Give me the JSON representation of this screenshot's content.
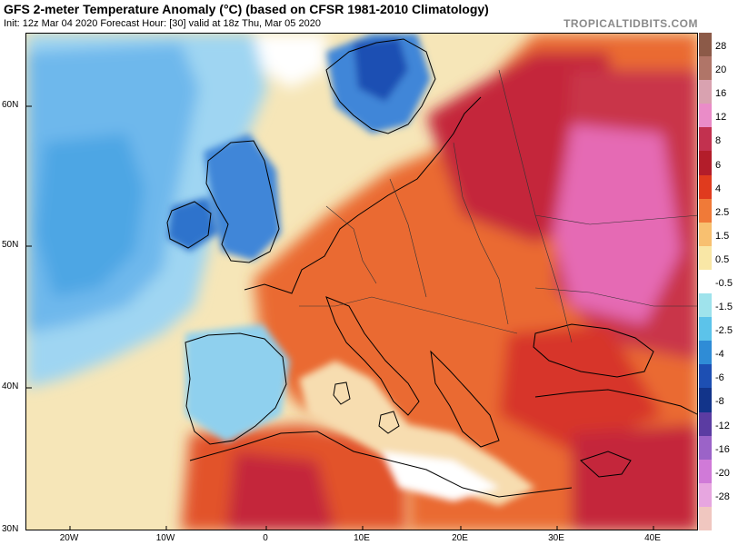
{
  "header": {
    "title": "GFS 2-meter Temperature Anomaly (°C) (based on CFSR 1981-2010 Climatology)",
    "subtitle": "Init: 12z Mar 04 2020   Forecast Hour: [30]   valid at 18z Thu, Mar 05 2020",
    "brand": "TROPICALTIDBITS.COM"
  },
  "map": {
    "lat_labels": [
      "60N",
      "50N",
      "40N",
      "30N"
    ],
    "lon_labels": [
      "20W",
      "10W",
      "0",
      "10E",
      "20E",
      "30E",
      "40E"
    ]
  },
  "legend": {
    "labels": [
      "28",
      "20",
      "16",
      "12",
      "8",
      "6",
      "4",
      "2.5",
      "1.5",
      "0.5",
      "-0.5",
      "-1.5",
      "-2.5",
      "-4",
      "-6",
      "-8",
      "-12",
      "-16",
      "-20",
      "-28"
    ],
    "colors": [
      "#8c5a48",
      "#b07568",
      "#d9a2b0",
      "#ea8cc8",
      "#c2314f",
      "#b31d2a",
      "#e03b1e",
      "#f07a38",
      "#f8c070",
      "#f9e7a6",
      "#ffffff",
      "#9fe3ec",
      "#5cc3ea",
      "#2f8cd6",
      "#1d4fb3",
      "#12348a",
      "#5b3ca2",
      "#9b63c8",
      "#d07ad8",
      "#e7a6e0",
      "#f0c7c0"
    ]
  },
  "colors": {
    "ocean_cold": "#7cc0ef",
    "ocean_neutral": "#f6e6b8",
    "land_warm": "#ea6a32",
    "land_hot": "#c4263a",
    "east_pink": "#e56bb4",
    "boundary": "#000000"
  }
}
